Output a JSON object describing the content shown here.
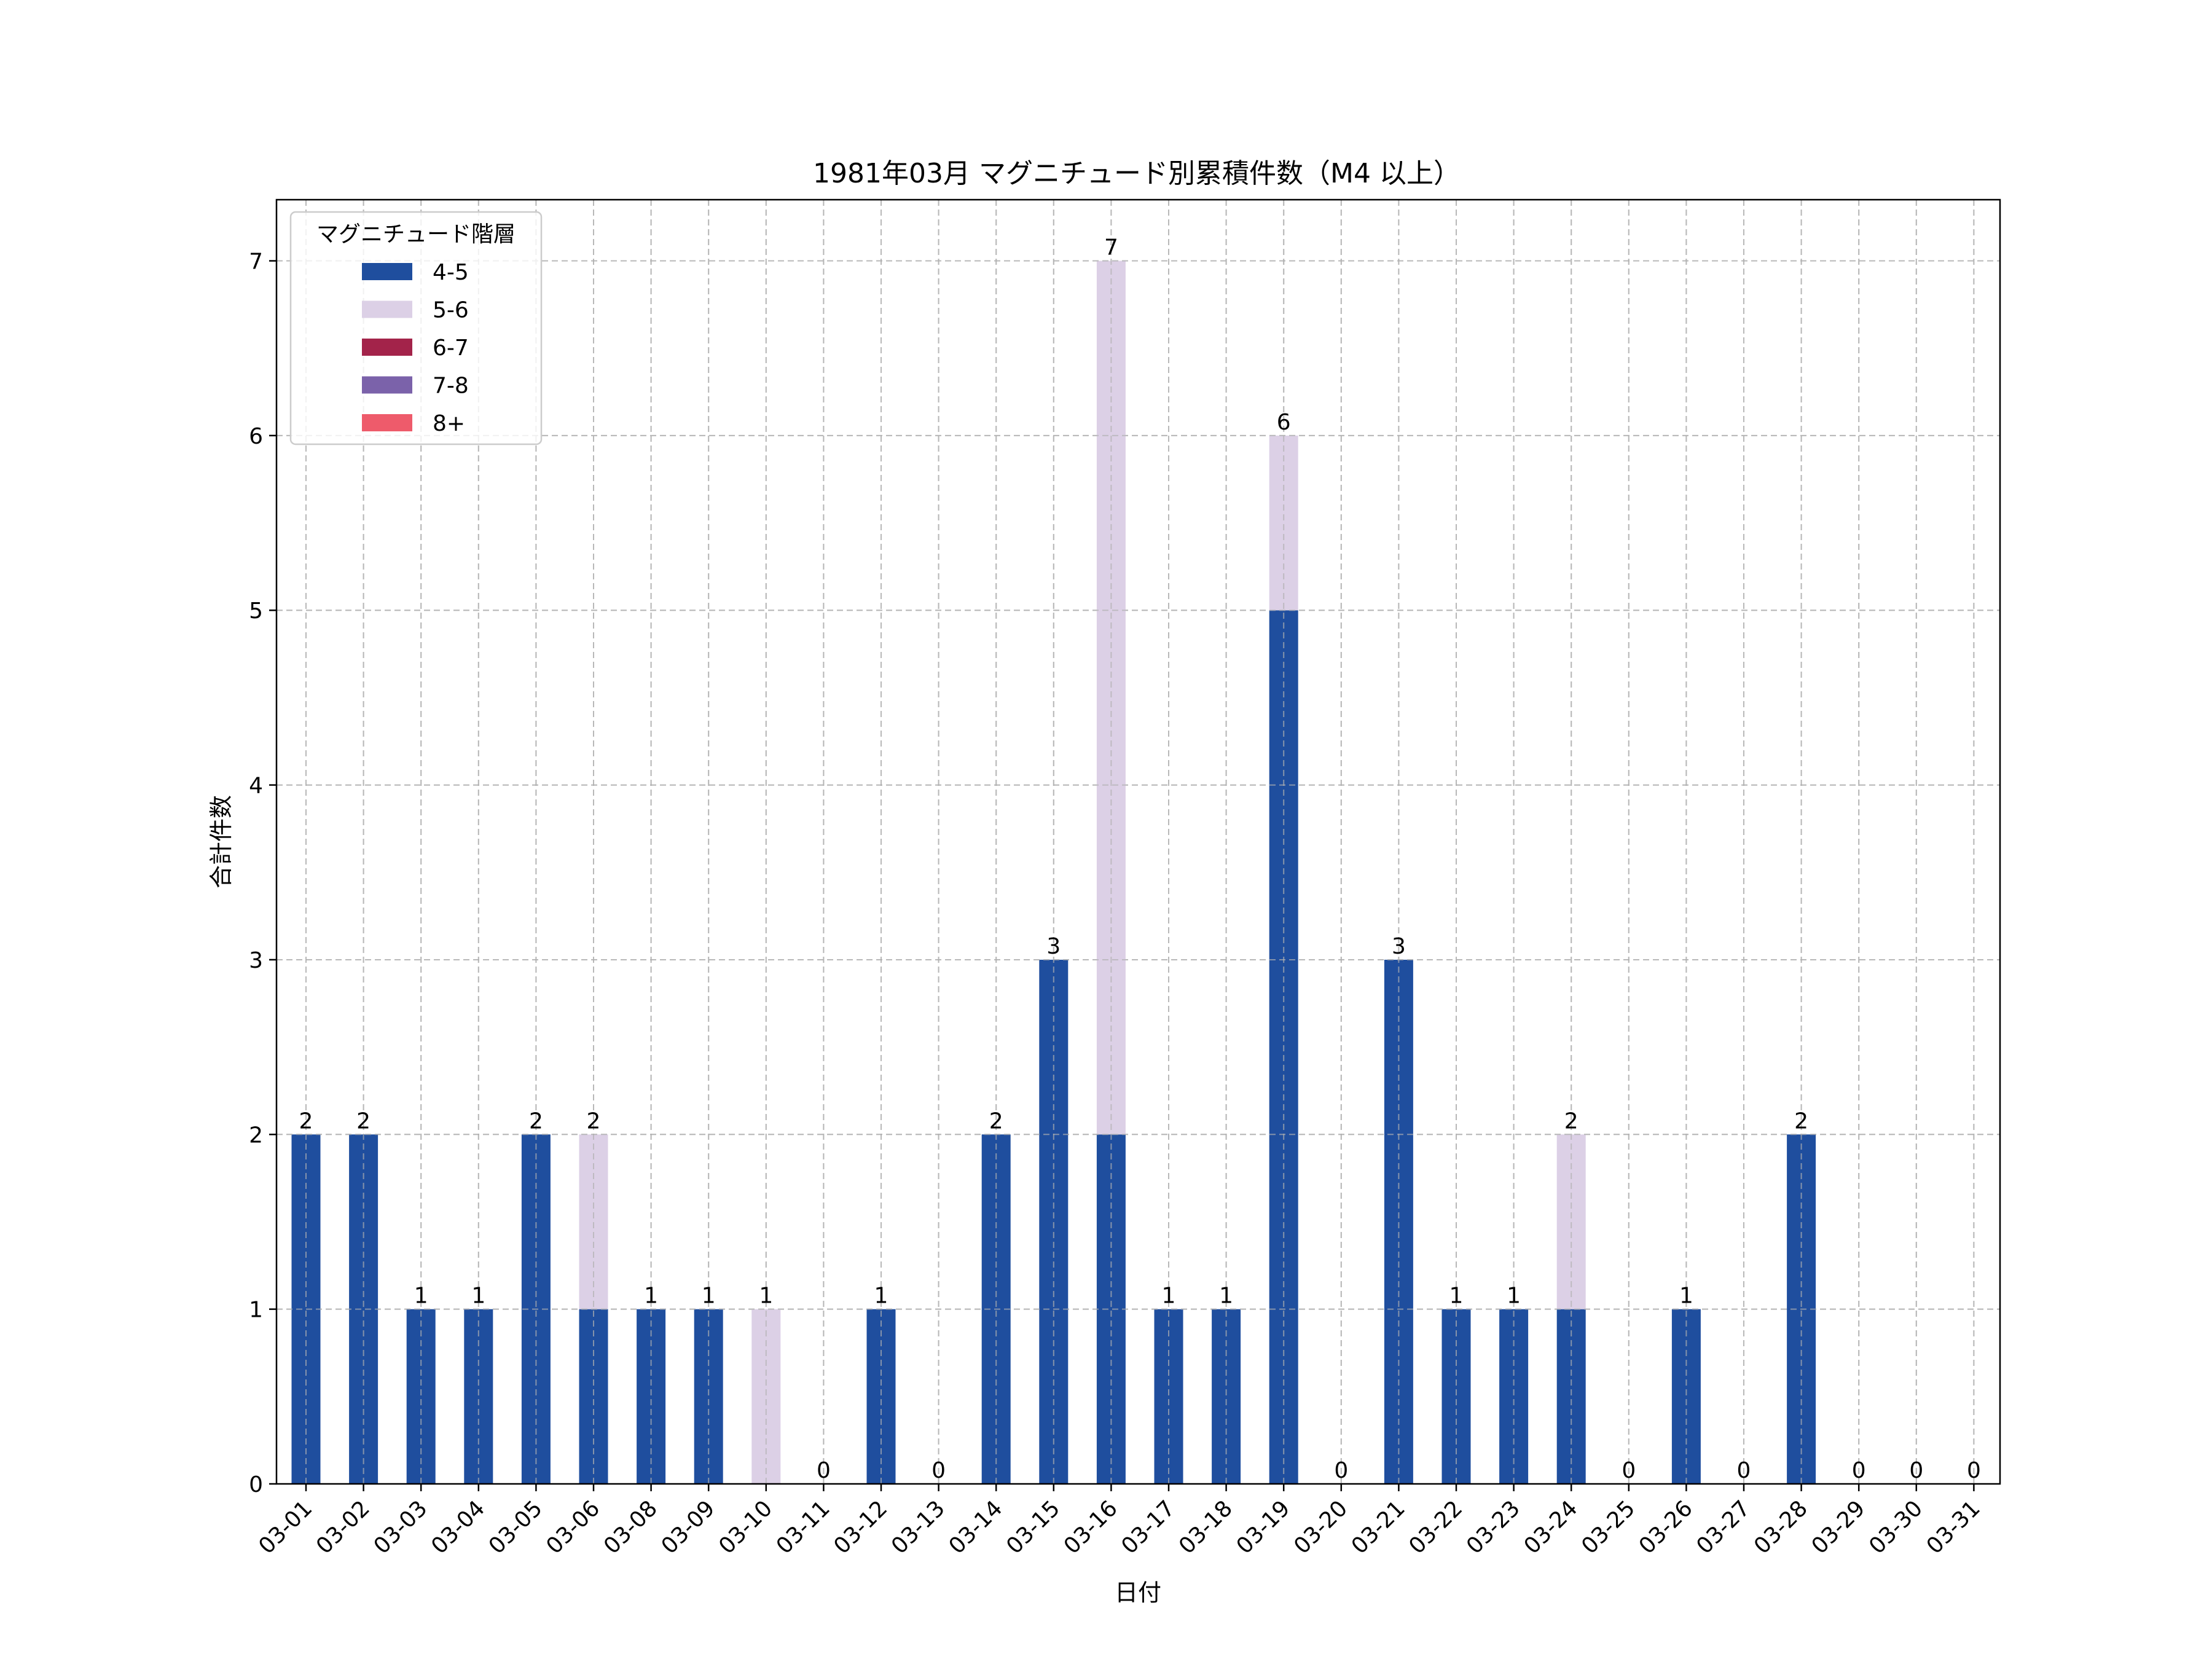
{
  "chart_data": {
    "type": "bar",
    "stacked": true,
    "title": "1981年03月 マグニチュード別累積件数（M4 以上）",
    "xlabel": "日付",
    "ylabel": "合計件数",
    "ylim": [
      0,
      7.35
    ],
    "yticks": [
      0,
      1,
      2,
      3,
      4,
      5,
      6,
      7
    ],
    "grid": true,
    "legend": {
      "title": "マグニチュード階層",
      "position": "top-left"
    },
    "categories": [
      "03-01",
      "03-02",
      "03-03",
      "03-04",
      "03-05",
      "03-06",
      "03-08",
      "03-09",
      "03-10",
      "03-11",
      "03-12",
      "03-13",
      "03-14",
      "03-15",
      "03-16",
      "03-17",
      "03-18",
      "03-19",
      "03-20",
      "03-21",
      "03-22",
      "03-23",
      "03-24",
      "03-25",
      "03-26",
      "03-27",
      "03-28",
      "03-29",
      "03-30",
      "03-31"
    ],
    "series": [
      {
        "name": "4-5",
        "color": "#1f4e9e",
        "values": [
          2,
          2,
          1,
          1,
          2,
          1,
          1,
          1,
          0,
          0,
          1,
          0,
          2,
          3,
          2,
          1,
          1,
          5,
          0,
          3,
          1,
          1,
          1,
          0,
          1,
          0,
          2,
          0,
          0,
          0
        ]
      },
      {
        "name": "5-6",
        "color": "#dcd0e6",
        "values": [
          0,
          0,
          0,
          0,
          0,
          1,
          0,
          0,
          1,
          0,
          0,
          0,
          0,
          0,
          5,
          0,
          0,
          1,
          0,
          0,
          0,
          0,
          1,
          0,
          0,
          0,
          0,
          0,
          0,
          0
        ]
      },
      {
        "name": "6-7",
        "color": "#a3234a",
        "values": [
          0,
          0,
          0,
          0,
          0,
          0,
          0,
          0,
          0,
          0,
          0,
          0,
          0,
          0,
          0,
          0,
          0,
          0,
          0,
          0,
          0,
          0,
          0,
          0,
          0,
          0,
          0,
          0,
          0,
          0
        ]
      },
      {
        "name": "7-8",
        "color": "#7b62aa",
        "values": [
          0,
          0,
          0,
          0,
          0,
          0,
          0,
          0,
          0,
          0,
          0,
          0,
          0,
          0,
          0,
          0,
          0,
          0,
          0,
          0,
          0,
          0,
          0,
          0,
          0,
          0,
          0,
          0,
          0,
          0
        ]
      },
      {
        "name": "8+",
        "color": "#ee5b6b",
        "values": [
          0,
          0,
          0,
          0,
          0,
          0,
          0,
          0,
          0,
          0,
          0,
          0,
          0,
          0,
          0,
          0,
          0,
          0,
          0,
          0,
          0,
          0,
          0,
          0,
          0,
          0,
          0,
          0,
          0,
          0
        ]
      }
    ],
    "totals": [
      2,
      2,
      1,
      1,
      2,
      2,
      1,
      1,
      1,
      0,
      1,
      0,
      2,
      3,
      7,
      1,
      1,
      6,
      0,
      3,
      1,
      1,
      2,
      0,
      1,
      0,
      2,
      0,
      0,
      0
    ]
  }
}
